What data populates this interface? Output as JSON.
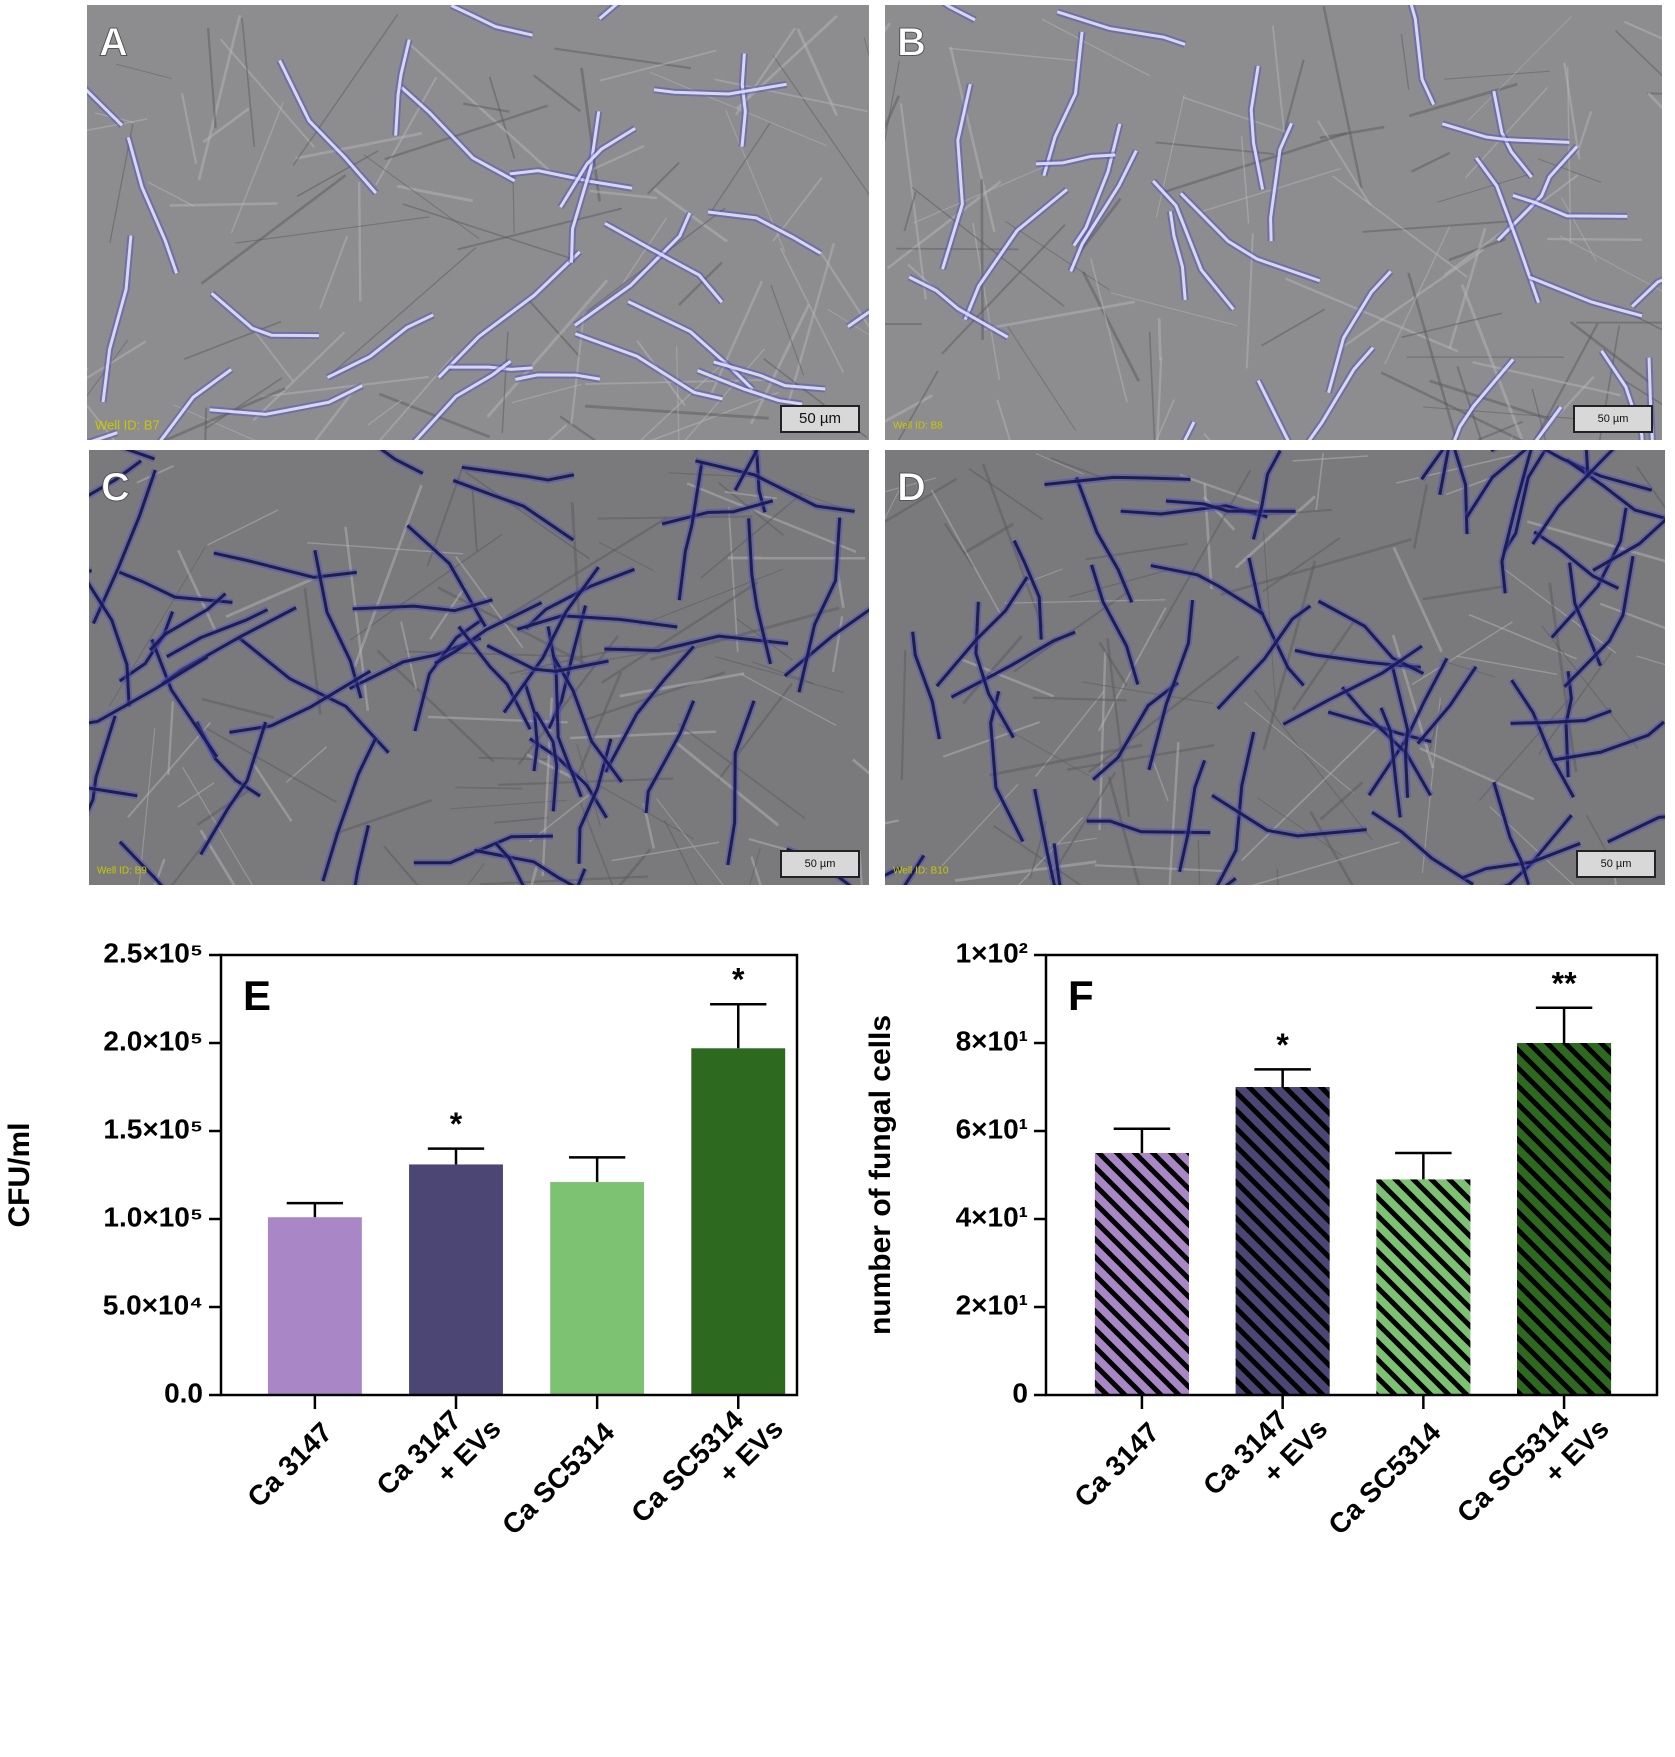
{
  "panels": [
    {
      "label": "A",
      "well_id": "Well ID: B7",
      "scale_bar": "50 µm"
    },
    {
      "label": "B",
      "well_id": "Well ID: B8",
      "scale_bar": "50 µm"
    },
    {
      "label": "C",
      "well_id": "Well ID: B9",
      "scale_bar": "50 µm"
    },
    {
      "label": "D",
      "well_id": "Well ID: B10",
      "scale_bar": "50 µm"
    }
  ],
  "chart_data": [
    {
      "type": "bar",
      "panel_label": "E",
      "ylabel": "CFU/ml",
      "categories": [
        [
          "Ca 3147"
        ],
        [
          "Ca 3147",
          "+ EVs"
        ],
        [
          "Ca SC5314"
        ],
        [
          "Ca SC5314",
          "+ EVs"
        ]
      ],
      "values": [
        101000,
        131000,
        121000,
        197000
      ],
      "errors": [
        8000,
        9000,
        14000,
        25000
      ],
      "colors": [
        "#a987c6",
        "#4b4673",
        "#7dc272",
        "#2d6a1f"
      ],
      "hatched": false,
      "significance": [
        null,
        "*",
        null,
        "*"
      ],
      "ylim": [
        0,
        250000
      ],
      "yticks": [
        {
          "value": 0,
          "label": "0.0"
        },
        {
          "value": 50000,
          "label": "5.0×10⁴"
        },
        {
          "value": 100000,
          "label": "1.0×10⁵"
        },
        {
          "value": 150000,
          "label": "1.5×10⁵"
        },
        {
          "value": 200000,
          "label": "2.0×10⁵"
        },
        {
          "value": 250000,
          "label": "2.5×10⁵"
        }
      ]
    },
    {
      "type": "bar",
      "panel_label": "F",
      "ylabel": "number of fungal cells",
      "categories": [
        [
          "Ca 3147"
        ],
        [
          "Ca 3147",
          "+ EVs"
        ],
        [
          "Ca SC5314"
        ],
        [
          "Ca SC5314",
          "+ EVs"
        ]
      ],
      "values": [
        55,
        70,
        49,
        80
      ],
      "errors": [
        5.5,
        4,
        6,
        8
      ],
      "colors": [
        "#a987c6",
        "#4b4673",
        "#7dc272",
        "#2d6a1f"
      ],
      "hatched": true,
      "significance": [
        null,
        "*",
        null,
        "**"
      ],
      "ylim": [
        0,
        100
      ],
      "yticks": [
        0,
        {
          "value": 20,
          "label": "2×10¹"
        },
        {
          "value": 40,
          "label": "4×10¹"
        },
        {
          "value": 60,
          "label": "6×10¹"
        },
        {
          "value": 80,
          "label": "8×10¹"
        },
        {
          "value": 100,
          "label": "1×10²"
        }
      ]
    }
  ]
}
